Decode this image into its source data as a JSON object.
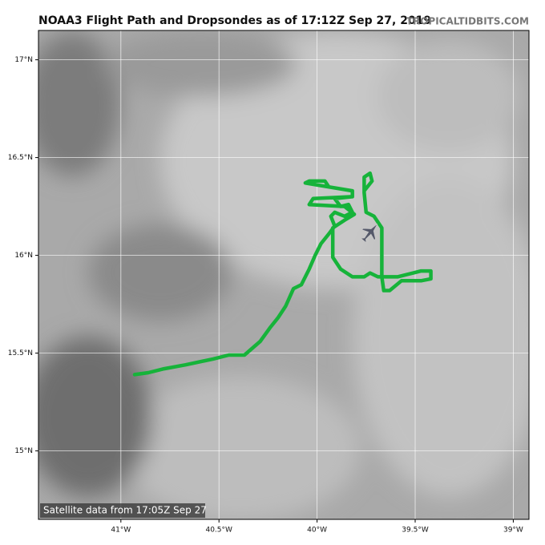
{
  "chart_data": {
    "type": "map",
    "title": "NOAA3 Flight Path and Dropsondes as of 17:12Z Sep 27, 2019",
    "source": "TROPICALTIDBITS.COM",
    "caption": "Satellite data from 17:05Z Sep 27",
    "xlim": [
      -41.42,
      -38.92
    ],
    "ylim": [
      14.65,
      17.15
    ],
    "xticks": [
      {
        "value": -41,
        "label": "41°W"
      },
      {
        "value": -40.5,
        "label": "40.5°W"
      },
      {
        "value": -40,
        "label": "40°W"
      },
      {
        "value": -39.5,
        "label": "39.5°W"
      },
      {
        "value": -39,
        "label": "39°W"
      }
    ],
    "yticks": [
      {
        "value": 15,
        "label": "15°N"
      },
      {
        "value": 15.5,
        "label": "15.5°N"
      },
      {
        "value": 16,
        "label": "16°N"
      },
      {
        "value": 16.5,
        "label": "16.5°N"
      },
      {
        "value": 17,
        "label": "17°N"
      }
    ],
    "grid": true,
    "series": [
      {
        "name": "NOAA3",
        "color": "#16b33a",
        "lon": [
          -40.93,
          -40.86,
          -40.78,
          -40.67,
          -40.53,
          -40.45,
          -40.37,
          -40.29,
          -40.24,
          -40.2,
          -40.16,
          -40.12,
          -40.08,
          -40.04,
          -40.01,
          -39.98,
          -39.94,
          -39.91,
          -39.93,
          -39.91,
          -39.86,
          -39.82,
          -39.84,
          -39.88,
          -39.91,
          -39.82,
          -39.82,
          -40.06,
          -40.04,
          -39.96,
          -39.94,
          -39.82,
          -39.82,
          -40.02,
          -40.04,
          -39.86,
          -39.81,
          -39.86,
          -39.92,
          -39.92,
          -39.92,
          -39.88,
          -39.82,
          -39.76,
          -39.73,
          -39.69,
          -39.59,
          -39.51,
          -39.47,
          -39.42,
          -39.42,
          -39.47,
          -39.57,
          -39.63,
          -39.66,
          -39.67,
          -39.67,
          -39.71,
          -39.75,
          -39.76,
          -39.76,
          -39.73,
          -39.72,
          -39.76
        ],
        "lat": [
          15.39,
          15.4,
          15.42,
          15.44,
          15.47,
          15.49,
          15.49,
          15.56,
          15.63,
          15.68,
          15.74,
          15.83,
          15.85,
          15.93,
          16.0,
          16.06,
          16.11,
          16.15,
          16.2,
          16.22,
          16.2,
          16.22,
          16.26,
          16.25,
          16.29,
          16.3,
          16.33,
          16.37,
          16.38,
          16.38,
          16.35,
          16.33,
          16.3,
          16.29,
          16.26,
          16.25,
          16.21,
          16.18,
          16.14,
          16.08,
          15.99,
          15.93,
          15.89,
          15.89,
          15.91,
          15.89,
          15.89,
          15.91,
          15.92,
          15.92,
          15.88,
          15.87,
          15.87,
          15.82,
          15.82,
          15.89,
          16.14,
          16.2,
          16.22,
          16.32,
          16.4,
          16.42,
          16.38,
          16.33
        ]
      }
    ]
  }
}
